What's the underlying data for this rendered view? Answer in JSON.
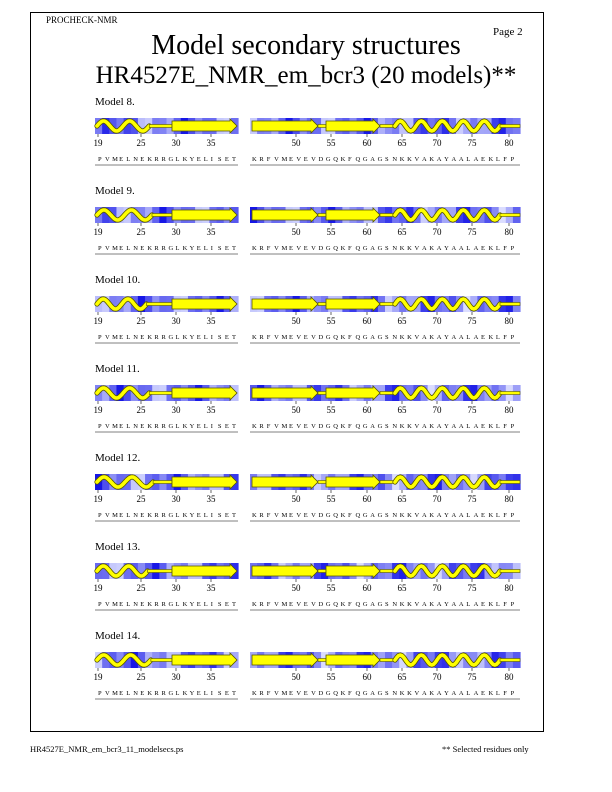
{
  "header": {
    "program": "PROCHECK-NMR",
    "page": "Page 2",
    "title": "Model secondary structures",
    "subtitle": "HR4527E_NMR_em_bcr3 (20 models)**"
  },
  "footer": {
    "filename": "HR4527E_NMR_em_bcr3_11_modelsecs.ps",
    "note": "** Selected residues only"
  },
  "colors": {
    "helix_strand_fill": "#ffff00",
    "outline": "#555500",
    "dark_blue": "#0000e0",
    "light_blue": "#dde0ff"
  },
  "sequence": {
    "segment1": "PVMELNEKRRGLKYELISET",
    "segment2": "KRFVMEVEVDGQKFQGAGSNKKVAKAYAALAEKLFP",
    "tick_labels_segment1": [
      "19",
      "25",
      "30",
      "35"
    ],
    "tick_labels_segment2": [
      "50",
      "55",
      "60",
      "65",
      "70",
      "75",
      "80"
    ]
  },
  "models": [
    {
      "label": "Model  8.",
      "helix1_ratio": 0.55
    },
    {
      "label": "Model  9.",
      "helix1_ratio": 0.6
    },
    {
      "label": "Model 10.",
      "helix1_ratio": 0.5
    },
    {
      "label": "Model 11.",
      "helix1_ratio": 0.55
    },
    {
      "label": "Model 12.",
      "helix1_ratio": 0.62
    },
    {
      "label": "Model 13.",
      "helix1_ratio": 0.52
    },
    {
      "label": "Model 14.",
      "helix1_ratio": 0.58
    }
  ]
}
